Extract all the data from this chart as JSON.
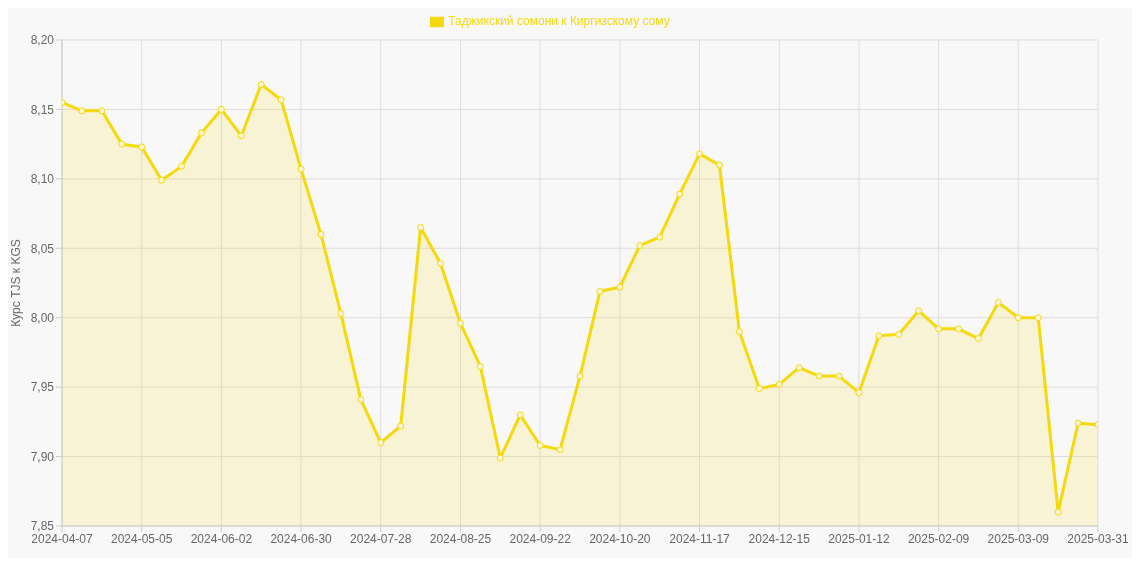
{
  "chart_data": {
    "type": "area",
    "categories": [
      "2024-04-07",
      null,
      null,
      null,
      "2024-05-05",
      null,
      null,
      null,
      "2024-06-02",
      null,
      null,
      null,
      "2024-06-30",
      null,
      null,
      null,
      "2024-07-28",
      null,
      null,
      null,
      "2024-08-25",
      null,
      null,
      null,
      "2024-09-22",
      null,
      null,
      null,
      "2024-10-20",
      null,
      null,
      null,
      "2024-11-17",
      null,
      null,
      null,
      "2024-12-15",
      null,
      null,
      null,
      "2025-01-12",
      null,
      null,
      null,
      "2025-02-09",
      null,
      null,
      null,
      "2025-03-09",
      null,
      null,
      null,
      "2025-03-31"
    ],
    "series": [
      {
        "name": "Таджикский сомони к Киргизскому сому",
        "color": "#f5d90a",
        "values": [
          8.155,
          8.149,
          8.149,
          8.125,
          8.123,
          8.099,
          8.109,
          8.133,
          8.15,
          8.131,
          8.168,
          8.157,
          8.107,
          8.06,
          8.003,
          7.941,
          7.91,
          7.922,
          8.065,
          8.039,
          7.996,
          7.965,
          7.899,
          7.93,
          7.908,
          7.905,
          7.958,
          8.019,
          8.022,
          8.052,
          8.058,
          8.089,
          8.118,
          8.11,
          7.99,
          7.949,
          7.952,
          7.964,
          7.958,
          7.958,
          7.946,
          7.987,
          7.988,
          8.005,
          7.992,
          7.992,
          7.985,
          8.011,
          8.0,
          8.0,
          7.86,
          7.924,
          7.923
        ]
      }
    ],
    "ylabel": "Курс TJS к KGS",
    "ylim": [
      7.85,
      8.2
    ],
    "yticks": [
      {
        "value": 7.85,
        "label": "7,85"
      },
      {
        "value": 7.9,
        "label": "7,90"
      },
      {
        "value": 7.95,
        "label": "7,95"
      },
      {
        "value": 8,
        "label": "8,00"
      },
      {
        "value": 8.05,
        "label": "8,05"
      },
      {
        "value": 8.1,
        "label": "8,10"
      },
      {
        "value": 8.15,
        "label": "8,15"
      },
      {
        "value": 8.2,
        "label": "8,20"
      }
    ],
    "grid": true,
    "legend": "top",
    "marker": "circle"
  }
}
